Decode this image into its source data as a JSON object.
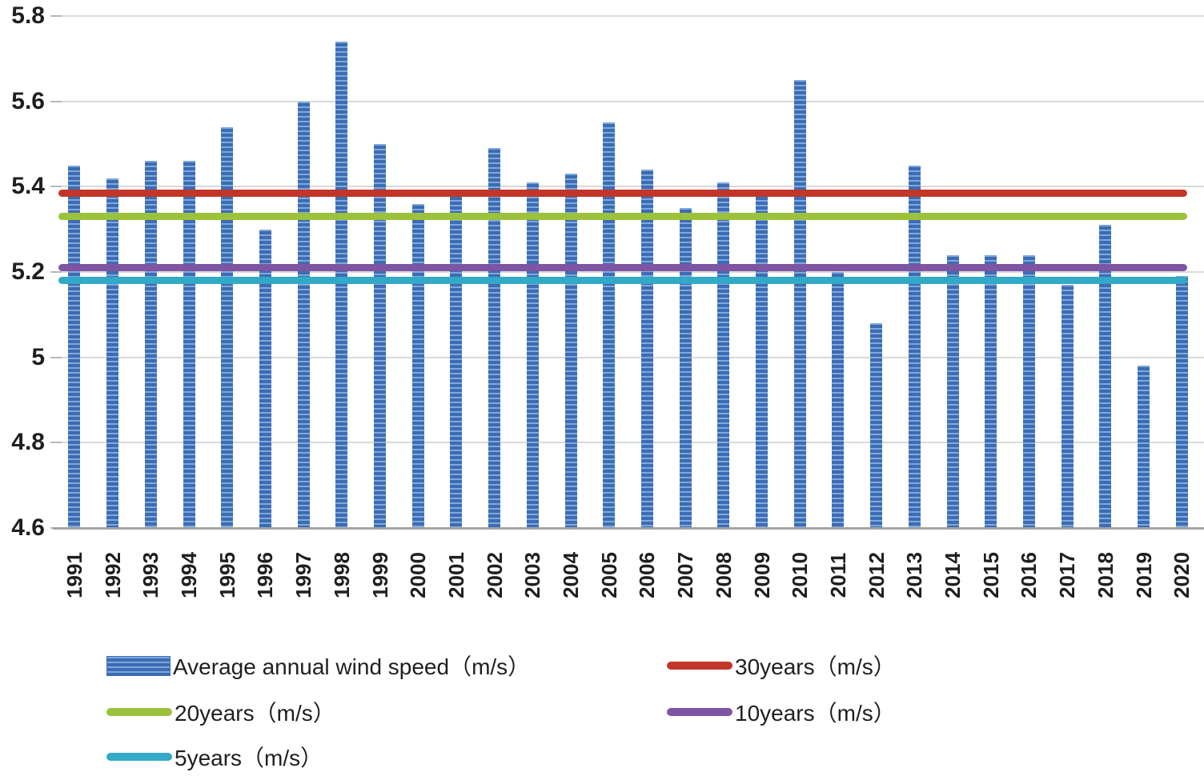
{
  "chart_data": {
    "type": "bar",
    "title": "",
    "xlabel": "",
    "ylabel": "",
    "categories": [
      "1991",
      "1992",
      "1993",
      "1994",
      "1995",
      "1996",
      "1997",
      "1998",
      "1999",
      "2000",
      "2001",
      "2002",
      "2003",
      "2004",
      "2005",
      "2006",
      "2007",
      "2008",
      "2009",
      "2010",
      "2011",
      "2012",
      "2013",
      "2014",
      "2015",
      "2016",
      "2017",
      "2018",
      "2019",
      "2020"
    ],
    "series": [
      {
        "name": "Average annual wind speed（m/s）",
        "kind": "bar",
        "values": [
          5.45,
          5.42,
          5.46,
          5.46,
          5.54,
          5.3,
          5.6,
          5.74,
          5.5,
          5.36,
          5.38,
          5.49,
          5.41,
          5.43,
          5.55,
          5.44,
          5.35,
          5.41,
          5.38,
          5.65,
          5.2,
          5.08,
          5.45,
          5.24,
          5.24,
          5.24,
          5.17,
          5.31,
          4.98,
          5.19
        ]
      },
      {
        "name": "30years（m/s）",
        "kind": "hline",
        "value": 5.385
      },
      {
        "name": "20years（m/s）",
        "kind": "hline",
        "value": 5.33
      },
      {
        "name": "10years（m/s）",
        "kind": "hline",
        "value": 5.21
      },
      {
        "name": "5years（m/s）",
        "kind": "hline",
        "value": 5.18
      }
    ],
    "ylim": [
      4.6,
      5.8
    ],
    "ytick_labels": [
      "5.8",
      "5.6",
      "5.4",
      "5.2",
      "5",
      "4.8",
      "4.6"
    ],
    "ytick_values": [
      5.8,
      5.6,
      5.4,
      5.2,
      5.0,
      4.8,
      4.6
    ],
    "grid": true,
    "legend_position": "bottom, two columns",
    "colors": {
      "bar_dark": "#3c6cb4",
      "bar_light": "#7ea9da",
      "line_30years": "#c2362a",
      "line_20years": "#9cc13c",
      "line_10years": "#7d55a3",
      "line_5years": "#32a9c7",
      "gridline": "#d9d9d9",
      "axis_line": "#a3a3a3",
      "text": "#1f1f1f"
    }
  }
}
